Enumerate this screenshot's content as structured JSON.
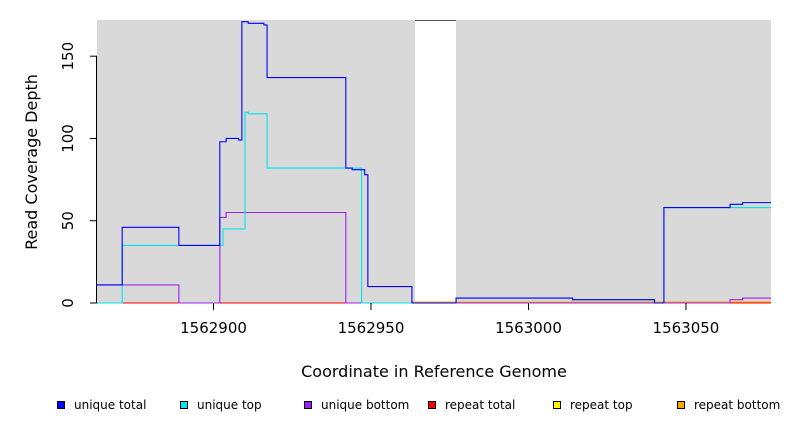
{
  "chart_data": {
    "type": "line",
    "title": "",
    "xlabel": "Coordinate in Reference Genome",
    "ylabel": "Read Coverage Depth",
    "xlim": [
      1562863,
      1563077
    ],
    "ylim": [
      0,
      172
    ],
    "x_ticks": [
      1562900,
      1562950,
      1563000,
      1563050
    ],
    "x_tick_labels": [
      "1562900",
      "1562950",
      "1563000",
      "1563050"
    ],
    "y_ticks": [
      0,
      50,
      100,
      150
    ],
    "y_tick_labels": [
      "0",
      "50",
      "100",
      "150"
    ],
    "grid": false,
    "background": "#d9d9d9",
    "gaps": [
      [
        1562964,
        1562977
      ]
    ],
    "series": [
      {
        "name": "unique total",
        "color": "#0000ff",
        "points": [
          [
            1562863,
            11
          ],
          [
            1562871,
            11
          ],
          [
            1562871,
            46
          ],
          [
            1562889,
            46
          ],
          [
            1562889,
            35
          ],
          [
            1562902,
            35
          ],
          [
            1562902,
            98
          ],
          [
            1562904,
            98
          ],
          [
            1562904,
            100
          ],
          [
            1562908,
            100
          ],
          [
            1562908,
            99
          ],
          [
            1562909,
            99
          ],
          [
            1562909,
            171
          ],
          [
            1562911,
            171
          ],
          [
            1562911,
            170
          ],
          [
            1562916,
            170
          ],
          [
            1562916,
            169
          ],
          [
            1562917,
            169
          ],
          [
            1562917,
            137
          ],
          [
            1562942,
            137
          ],
          [
            1562942,
            82
          ],
          [
            1562944,
            82
          ],
          [
            1562944,
            81
          ],
          [
            1562948,
            81
          ],
          [
            1562948,
            78
          ],
          [
            1562949,
            78
          ],
          [
            1562949,
            10
          ],
          [
            1562963,
            10
          ],
          [
            1562963,
            0
          ],
          [
            1562977,
            0
          ],
          [
            1562977,
            3
          ],
          [
            1563014,
            3
          ],
          [
            1563014,
            2
          ],
          [
            1563040,
            2
          ],
          [
            1563040,
            0
          ],
          [
            1563043,
            0
          ],
          [
            1563043,
            58
          ],
          [
            1563064,
            58
          ],
          [
            1563064,
            60
          ],
          [
            1563068,
            60
          ],
          [
            1563068,
            61
          ],
          [
            1563077,
            61
          ]
        ]
      },
      {
        "name": "unique top",
        "color": "#00e5ee",
        "points": [
          [
            1562863,
            0
          ],
          [
            1562871,
            0
          ],
          [
            1562871,
            35
          ],
          [
            1562903,
            35
          ],
          [
            1562903,
            45
          ],
          [
            1562910,
            45
          ],
          [
            1562910,
            116
          ],
          [
            1562911,
            116
          ],
          [
            1562911,
            115
          ],
          [
            1562917,
            115
          ],
          [
            1562917,
            82
          ],
          [
            1562947,
            82
          ],
          [
            1562947,
            0
          ],
          [
            1562977,
            0
          ],
          [
            1562977,
            3
          ],
          [
            1563014,
            3
          ],
          [
            1563014,
            2
          ],
          [
            1563040,
            2
          ],
          [
            1563040,
            0
          ],
          [
            1563043,
            0
          ],
          [
            1563043,
            58
          ],
          [
            1563077,
            58
          ]
        ]
      },
      {
        "name": "unique bottom",
        "color": "#a020f0",
        "points": [
          [
            1562863,
            11
          ],
          [
            1562889,
            11
          ],
          [
            1562889,
            0
          ],
          [
            1562902,
            0
          ],
          [
            1562902,
            52
          ],
          [
            1562904,
            52
          ],
          [
            1562904,
            55
          ],
          [
            1562942,
            55
          ],
          [
            1562942,
            0
          ],
          [
            1563064,
            0
          ],
          [
            1563064,
            2
          ],
          [
            1563068,
            2
          ],
          [
            1563068,
            3
          ],
          [
            1563077,
            3
          ]
        ]
      },
      {
        "name": "repeat total",
        "color": "#ff0000",
        "points": [
          [
            1562863,
            0
          ],
          [
            1563077,
            0
          ]
        ]
      },
      {
        "name": "repeat top",
        "color": "#ffff00",
        "points": [
          [
            1562863,
            0
          ],
          [
            1563077,
            0
          ]
        ]
      },
      {
        "name": "repeat bottom",
        "color": "#ffa500",
        "points": [
          [
            1562863,
            0
          ],
          [
            1562963,
            0
          ],
          [
            1562963,
            0.6
          ],
          [
            1563077,
            0.6
          ]
        ]
      }
    ]
  }
}
